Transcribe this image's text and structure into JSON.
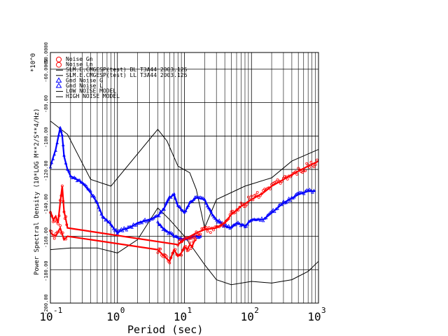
{
  "chart_data": {
    "type": "scatter",
    "title": "",
    "xlabel": "Period (sec)",
    "ylabel": "Power Spectral Density (10*LOG M**2/S**4/Hz)",
    "y_exponent_label": "*10^0",
    "xscale": "log",
    "xlim": [
      0.1,
      1000
    ],
    "ylim": [
      -200,
      -50
    ],
    "grid": true,
    "legend_position": "top-left",
    "x_tick_labels": [
      {
        "base": "10",
        "exp": "-1",
        "value": 0.1
      },
      {
        "base": "10",
        "exp": "0",
        "value": 1
      },
      {
        "base": "10",
        "exp": "1",
        "value": 10
      },
      {
        "base": "10",
        "exp": "2",
        "value": 100
      },
      {
        "base": "10",
        "exp": "3",
        "value": 1000
      }
    ],
    "y_tick_labels": [
      {
        "label": "-50.0000",
        "value": -50
      },
      {
        "label": "-60.0000",
        "value": -60
      },
      {
        "label": "-80.00",
        "value": -80
      },
      {
        "label": "-100.00",
        "value": -100
      },
      {
        "label": "-120.00",
        "value": -120
      },
      {
        "label": "-140.00",
        "value": -140
      },
      {
        "label": "-160.00",
        "value": -160
      },
      {
        "label": "-180.00",
        "value": -180
      },
      {
        "label": "-200.00",
        "value": -200
      }
    ],
    "legend": [
      {
        "label": "Noise Gn",
        "color": "#ff0000",
        "marker": "circle"
      },
      {
        "label": "Noise Ln",
        "color": "#ff0000",
        "marker": "circle"
      },
      {
        "label": "SLM.E.CMGESP(test) BL T3A44 2003.126",
        "color": "#000000",
        "marker": "line"
      },
      {
        "label": "SLM.E.CMGESP(test) LL T3A44 2003.126",
        "color": "#000000",
        "marker": "line"
      },
      {
        "label": "Gnd Noise G",
        "color": "#0000ff",
        "marker": "triangle"
      },
      {
        "label": "Gnd Noise L",
        "color": "#0000ff",
        "marker": "triangle"
      },
      {
        "label": "LOW NOISE MODEL",
        "color": "#000000",
        "marker": "line"
      },
      {
        "label": "HIGH NOISE MODEL",
        "color": "#000000",
        "marker": "line"
      }
    ],
    "series": [
      {
        "name": "HIGH NOISE MODEL",
        "color": "#000000",
        "style": "line",
        "x": [
          0.1,
          0.18,
          0.4,
          0.8,
          4.0,
          5.5,
          8.0,
          12.0,
          15.0,
          20.0,
          30.0,
          80.0,
          200.0,
          400.0,
          1000.0
        ],
        "y": [
          -91,
          -99,
          -126,
          -130,
          -96,
          -103,
          -118,
          -122,
          -132,
          -155,
          -138,
          -130,
          -125,
          -115,
          -108
        ]
      },
      {
        "name": "LOW NOISE MODEL",
        "color": "#000000",
        "style": "line",
        "x": [
          0.1,
          0.2,
          0.5,
          1.0,
          2.0,
          4.0,
          6.0,
          10.0,
          20.0,
          30.0,
          50.0,
          100.0,
          200.0,
          400.0,
          700.0,
          1000.0
        ],
        "y": [
          -168,
          -167,
          -167,
          -170,
          -162,
          -143,
          -150,
          -160,
          -177,
          -186,
          -189,
          -187,
          -188,
          -186,
          -181,
          -175
        ]
      },
      {
        "name": "Gnd Noise G",
        "color": "#0000ff",
        "style": "markers",
        "x": [
          0.1,
          0.12,
          0.14,
          0.15,
          0.16,
          0.18,
          0.2,
          0.25,
          0.3,
          0.4,
          0.5,
          0.6,
          0.8,
          1.0,
          1.2,
          1.5,
          2.0,
          3.0,
          4.0,
          5.0,
          6.0,
          7.0,
          8.0,
          9.0,
          10.0,
          12.0,
          15.0,
          20.0,
          25.0,
          30.0,
          40.0,
          50.0,
          60.0,
          80.0,
          100.0,
          150.0,
          200.0,
          300.0,
          500.0,
          700.0,
          900.0
        ],
        "y": [
          -118,
          -108,
          -95,
          -100,
          -112,
          -120,
          -124,
          -126,
          -128,
          -134,
          -140,
          -148,
          -153,
          -158,
          -156,
          -155,
          -152,
          -150,
          -148,
          -143,
          -137,
          -135,
          -142,
          -144,
          -146,
          -140,
          -137,
          -138,
          -146,
          -150,
          -154,
          -155,
          -152,
          -154,
          -150,
          -150,
          -146,
          -140,
          -135,
          -133,
          -133
        ]
      },
      {
        "name": "Gnd Noise L",
        "color": "#0000ff",
        "style": "markers",
        "x": [
          4.0,
          5.0,
          6.0,
          7.0,
          8.0,
          10.0,
          12.0,
          15.0,
          18.0
        ],
        "y": [
          -152,
          -156,
          -158,
          -160,
          -161,
          -162,
          -161,
          -160,
          -160
        ]
      },
      {
        "name": "Noise Gn",
        "color": "#ff0000",
        "style": "markers",
        "x": [
          0.1,
          0.11,
          0.12,
          0.13,
          0.14,
          0.15,
          0.16,
          0.17,
          0.18,
          8.0,
          10.0,
          15.0,
          20.0,
          30.0,
          40.0,
          50.0,
          70.0,
          100.0,
          150.0,
          200.0,
          300.0,
          500.0,
          700.0,
          1000.0
        ],
        "y": [
          -145,
          -150,
          -148,
          -152,
          -140,
          -130,
          -145,
          -150,
          -155,
          -165,
          -162,
          -158,
          -156,
          -155,
          -152,
          -147,
          -142,
          -138,
          -134,
          -130,
          -126,
          -121,
          -118,
          -115
        ]
      },
      {
        "name": "Noise Ln",
        "color": "#ff0000",
        "style": "markers",
        "x": [
          0.1,
          0.12,
          0.14,
          0.16,
          0.18,
          4.0,
          5.0,
          6.0,
          7.0,
          8.0,
          9.0,
          10.0,
          11.0,
          12.0,
          13.0,
          14.0,
          15.0
        ],
        "y": [
          -158,
          -160,
          -155,
          -162,
          -160,
          -168,
          -172,
          -175,
          -168,
          -172,
          -170,
          -166,
          -168,
          -165,
          -166,
          -163,
          -162
        ]
      }
    ]
  }
}
